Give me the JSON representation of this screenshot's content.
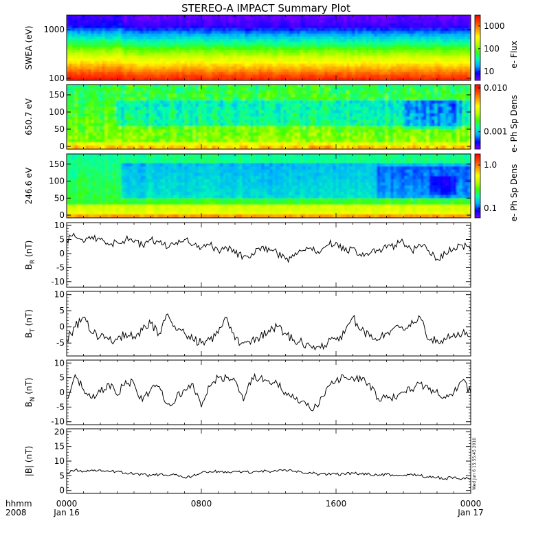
{
  "title": "STEREO-A IMPACT Summary Plot",
  "chart_data": {
    "type": "line",
    "title": "STEREO-A IMPACT Summary Plot",
    "x_axis": {
      "year_label": "2008",
      "format_label": "hhmm",
      "range": [
        "2008-01-16T00:00",
        "2008-01-17T00:00"
      ],
      "ticks": [
        {
          "time": "0000",
          "date": "Jan 16",
          "hours": 0
        },
        {
          "time": "0800",
          "date": "",
          "hours": 8
        },
        {
          "time": "1600",
          "date": "",
          "hours": 16
        },
        {
          "time": "0000",
          "date": "Jan 17",
          "hours": 24
        }
      ]
    },
    "spectrograms": [
      {
        "id": "swea",
        "type": "heatmap",
        "ylabel": "SWEA (eV)",
        "yscale": "log",
        "ylim": [
          90,
          2000
        ],
        "yticks": [
          "1000",
          "100"
        ],
        "ytick_values": [
          1000,
          100
        ],
        "colorbar_label": "e- Flux",
        "colorbar_scale": "log",
        "colorbar_ticks": [
          "1000",
          "100",
          "10"
        ],
        "colorbar_tick_values": [
          1000,
          100,
          10
        ],
        "colorbar_range": [
          4,
          3000
        ]
      },
      {
        "id": "pad650",
        "type": "heatmap",
        "ylabel": "650.7 eV",
        "ylim": [
          -8,
          180
        ],
        "yticks": [
          "150",
          "100",
          "50",
          "0"
        ],
        "ytick_values": [
          150,
          100,
          50,
          0
        ],
        "colorbar_label": "e- Ph Sp Dens",
        "colorbar_scale": "log",
        "colorbar_ticks": [
          "0.010",
          "0.001"
        ],
        "colorbar_tick_values": [
          0.01,
          0.001
        ],
        "colorbar_range": [
          0.0004,
          0.012
        ]
      },
      {
        "id": "pad246",
        "type": "heatmap",
        "ylabel": "246.6 eV",
        "ylim": [
          -8,
          180
        ],
        "yticks": [
          "150",
          "100",
          "50",
          "0"
        ],
        "ytick_values": [
          150,
          100,
          50,
          0
        ],
        "colorbar_label": "e- Ph Sp Dens",
        "colorbar_scale": "log",
        "colorbar_ticks": [
          "1.0",
          "0.1"
        ],
        "colorbar_tick_values": [
          1.0,
          0.1
        ],
        "colorbar_range": [
          0.06,
          1.8
        ]
      }
    ],
    "line_panels": [
      {
        "id": "br",
        "ylabel_main": "B",
        "ylabel_sub": "R",
        "ylabel_unit": "(nT)",
        "ylim": [
          -12,
          11
        ],
        "yticks": [
          "10",
          "5",
          "0",
          "-5",
          "-10"
        ],
        "ytick_values": [
          10,
          5,
          0,
          -5,
          -10
        ],
        "x_hours": [
          0,
          0.5,
          1,
          1.5,
          2,
          2.5,
          3,
          3.5,
          4,
          4.5,
          5,
          5.5,
          6,
          6.5,
          7,
          7.5,
          8,
          8.5,
          9,
          9.5,
          10,
          10.5,
          11,
          11.5,
          12,
          12.5,
          13,
          13.5,
          14,
          14.5,
          15,
          15.5,
          16,
          16.5,
          17,
          17.5,
          18,
          18.5,
          19,
          19.5,
          20,
          20.5,
          21,
          21.5,
          22,
          22.5,
          23,
          23.5,
          24
        ],
        "values": [
          5,
          6,
          4,
          6,
          5,
          3,
          4,
          5,
          4,
          3,
          5,
          4,
          2,
          4,
          5,
          3,
          2,
          3,
          1,
          2,
          0,
          -1,
          0,
          1,
          2,
          0,
          -2,
          -1,
          1,
          2,
          0,
          3,
          4,
          1,
          2,
          -1,
          0,
          1,
          2,
          3,
          4,
          1,
          3,
          1,
          -2,
          0,
          2,
          3,
          1
        ]
      },
      {
        "id": "bt",
        "ylabel_main": "B",
        "ylabel_sub": "T",
        "ylabel_unit": "(nT)",
        "ylim": [
          -9,
          11
        ],
        "yticks": [
          "10",
          "5",
          "0",
          "-5"
        ],
        "ytick_values": [
          10,
          5,
          0,
          -5
        ],
        "x_hours": [
          0,
          0.5,
          1,
          1.5,
          2,
          2.5,
          3,
          3.5,
          4,
          4.5,
          5,
          5.5,
          6,
          6.5,
          7,
          7.5,
          8,
          8.5,
          9,
          9.5,
          10,
          10.5,
          11,
          11.5,
          12,
          12.5,
          13,
          13.5,
          14,
          14.5,
          15,
          15.5,
          16,
          16.5,
          17,
          17.5,
          18,
          18.5,
          19,
          19.5,
          20,
          20.5,
          21,
          21.5,
          22,
          22.5,
          23,
          23.5,
          24
        ],
        "values": [
          -4,
          0,
          3,
          -2,
          -3,
          -4,
          -4,
          -2,
          -3,
          -1,
          1,
          -2,
          4,
          -1,
          -2,
          -4,
          -5,
          -4,
          -2,
          3,
          -4,
          -5,
          -4,
          -3,
          -1,
          0,
          -2,
          -4,
          -5,
          -6,
          -6,
          -5,
          -4,
          -2,
          3,
          -1,
          -3,
          -4,
          -2,
          0,
          -1,
          2,
          3,
          -4,
          -4,
          -4,
          -2,
          -2,
          -3
        ]
      },
      {
        "id": "bn",
        "ylabel_main": "B",
        "ylabel_sub": "N",
        "ylabel_unit": "(nT)",
        "ylim": [
          -11,
          11
        ],
        "yticks": [
          "10",
          "5",
          "0",
          "-5",
          "-10"
        ],
        "ytick_values": [
          10,
          5,
          0,
          -5,
          -10
        ],
        "x_hours": [
          0,
          0.5,
          1,
          1.5,
          2,
          2.5,
          3,
          3.5,
          4,
          4.5,
          5,
          5.5,
          6,
          6.5,
          7,
          7.5,
          8,
          8.5,
          9,
          9.5,
          10,
          10.5,
          11,
          11.5,
          12,
          12.5,
          13,
          13.5,
          14,
          14.5,
          15,
          15.5,
          16,
          16.5,
          17,
          17.5,
          18,
          18.5,
          19,
          19.5,
          20,
          20.5,
          21,
          21.5,
          22,
          22.5,
          23,
          23.5,
          24
        ],
        "values": [
          -2,
          6,
          1,
          -2,
          0,
          3,
          -1,
          4,
          3,
          -3,
          1,
          2,
          -4,
          -2,
          1,
          3,
          -5,
          2,
          5,
          5,
          4,
          -3,
          5,
          5,
          4,
          3,
          0,
          -2,
          -3,
          -6,
          -4,
          2,
          4,
          5,
          5,
          4,
          3,
          -2,
          -1,
          -2,
          0,
          1,
          3,
          1,
          1,
          -2,
          0,
          4,
          0
        ]
      },
      {
        "id": "btot",
        "ylabel_main": "|B|",
        "ylabel_sub": "",
        "ylabel_unit": "(nT)",
        "ylim": [
          -1,
          21
        ],
        "yticks": [
          "20",
          "15",
          "10",
          "5",
          "0"
        ],
        "ytick_values": [
          20,
          15,
          10,
          5,
          0
        ],
        "x_hours": [
          0,
          0.5,
          1,
          1.5,
          2,
          2.5,
          3,
          3.5,
          4,
          4.5,
          5,
          5.5,
          6,
          6.5,
          7,
          7.5,
          8,
          8.5,
          9,
          9.5,
          10,
          10.5,
          11,
          11.5,
          12,
          12.5,
          13,
          13.5,
          14,
          14.5,
          15,
          15.5,
          16,
          16.5,
          17,
          17.5,
          18,
          18.5,
          19,
          19.5,
          20,
          20.5,
          21,
          21.5,
          22,
          22.5,
          23,
          23.5,
          24
        ],
        "values": [
          6,
          7,
          6.5,
          7,
          7,
          6.5,
          6.5,
          6,
          5.5,
          5.5,
          5,
          5.5,
          5,
          5.5,
          4.5,
          5,
          6,
          6.5,
          6.5,
          6,
          6.5,
          6.5,
          6,
          6.5,
          6.5,
          6.5,
          7,
          6.5,
          6,
          6,
          5.5,
          5.5,
          5.5,
          5.5,
          6,
          5.5,
          5.5,
          5,
          5.5,
          5,
          5,
          5.5,
          5,
          4.5,
          4.5,
          4,
          4.5,
          4,
          4
        ]
      }
    ],
    "timestamp": "Wed Jun 6 15:55:45 2010"
  },
  "colors": {
    "line": "#000000",
    "background": "#ffffff",
    "colormap": [
      "#7f00ff",
      "#0000ff",
      "#00b0ff",
      "#00ffb0",
      "#40ff00",
      "#c0ff00",
      "#ffff00",
      "#ffa000",
      "#ff4000",
      "#ff0000"
    ]
  }
}
